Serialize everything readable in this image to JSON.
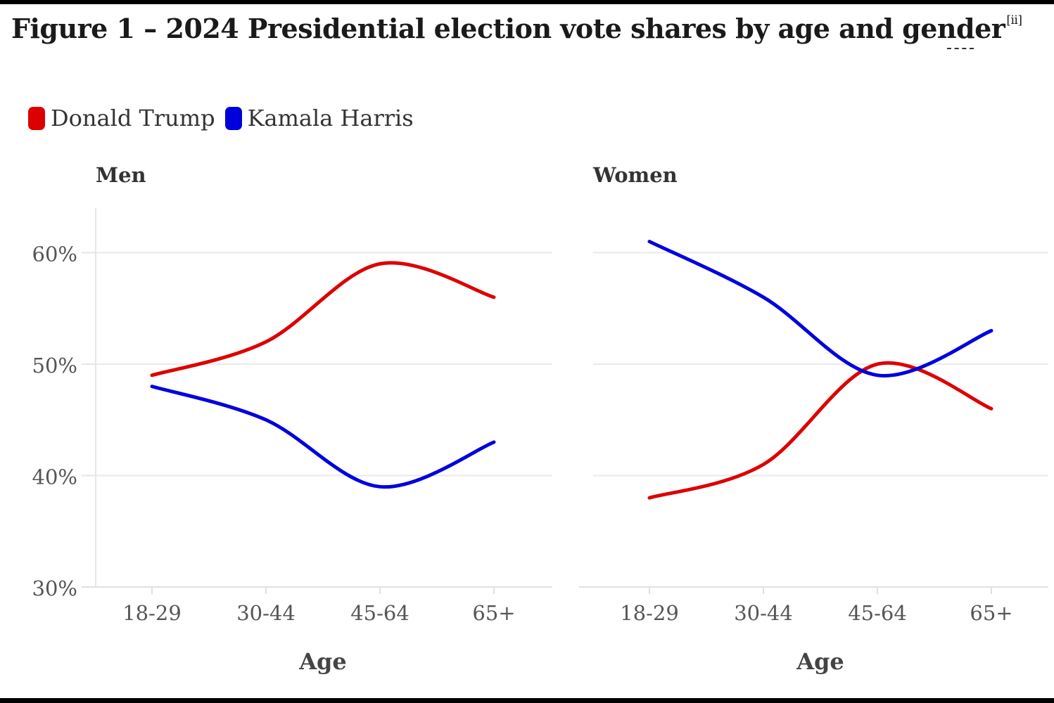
{
  "title": "Figure 1 – 2024 Presidential election vote shares by age and gender",
  "title_ref": "[ii]",
  "legend": [
    {
      "label": "Donald Trump",
      "color": "#dd0000"
    },
    {
      "label": "Kamala Harris",
      "color": "#0000dd"
    }
  ],
  "chart_data": {
    "type": "line",
    "title": "Figure 1 – 2024 Presidential election vote shares by age and gender",
    "categories": [
      "18-29",
      "30-44",
      "45-64",
      "65+"
    ],
    "y_ticks": [
      "30%",
      "40%",
      "50%",
      "60%"
    ],
    "ylim": [
      30,
      64
    ],
    "xlabel": "Age",
    "ylabel": "",
    "grid": true,
    "legend_position": "top-left",
    "panels": [
      {
        "name": "Men",
        "series": [
          {
            "name": "Donald Trump",
            "color": "#dd0000",
            "values": [
              49,
              52,
              59,
              56
            ]
          },
          {
            "name": "Kamala Harris",
            "color": "#0000dd",
            "values": [
              48,
              45,
              39,
              43
            ]
          }
        ]
      },
      {
        "name": "Women",
        "series": [
          {
            "name": "Donald Trump",
            "color": "#dd0000",
            "values": [
              38,
              41,
              50,
              46
            ]
          },
          {
            "name": "Kamala Harris",
            "color": "#0000dd",
            "values": [
              61,
              56,
              49,
              53
            ]
          }
        ]
      }
    ]
  }
}
